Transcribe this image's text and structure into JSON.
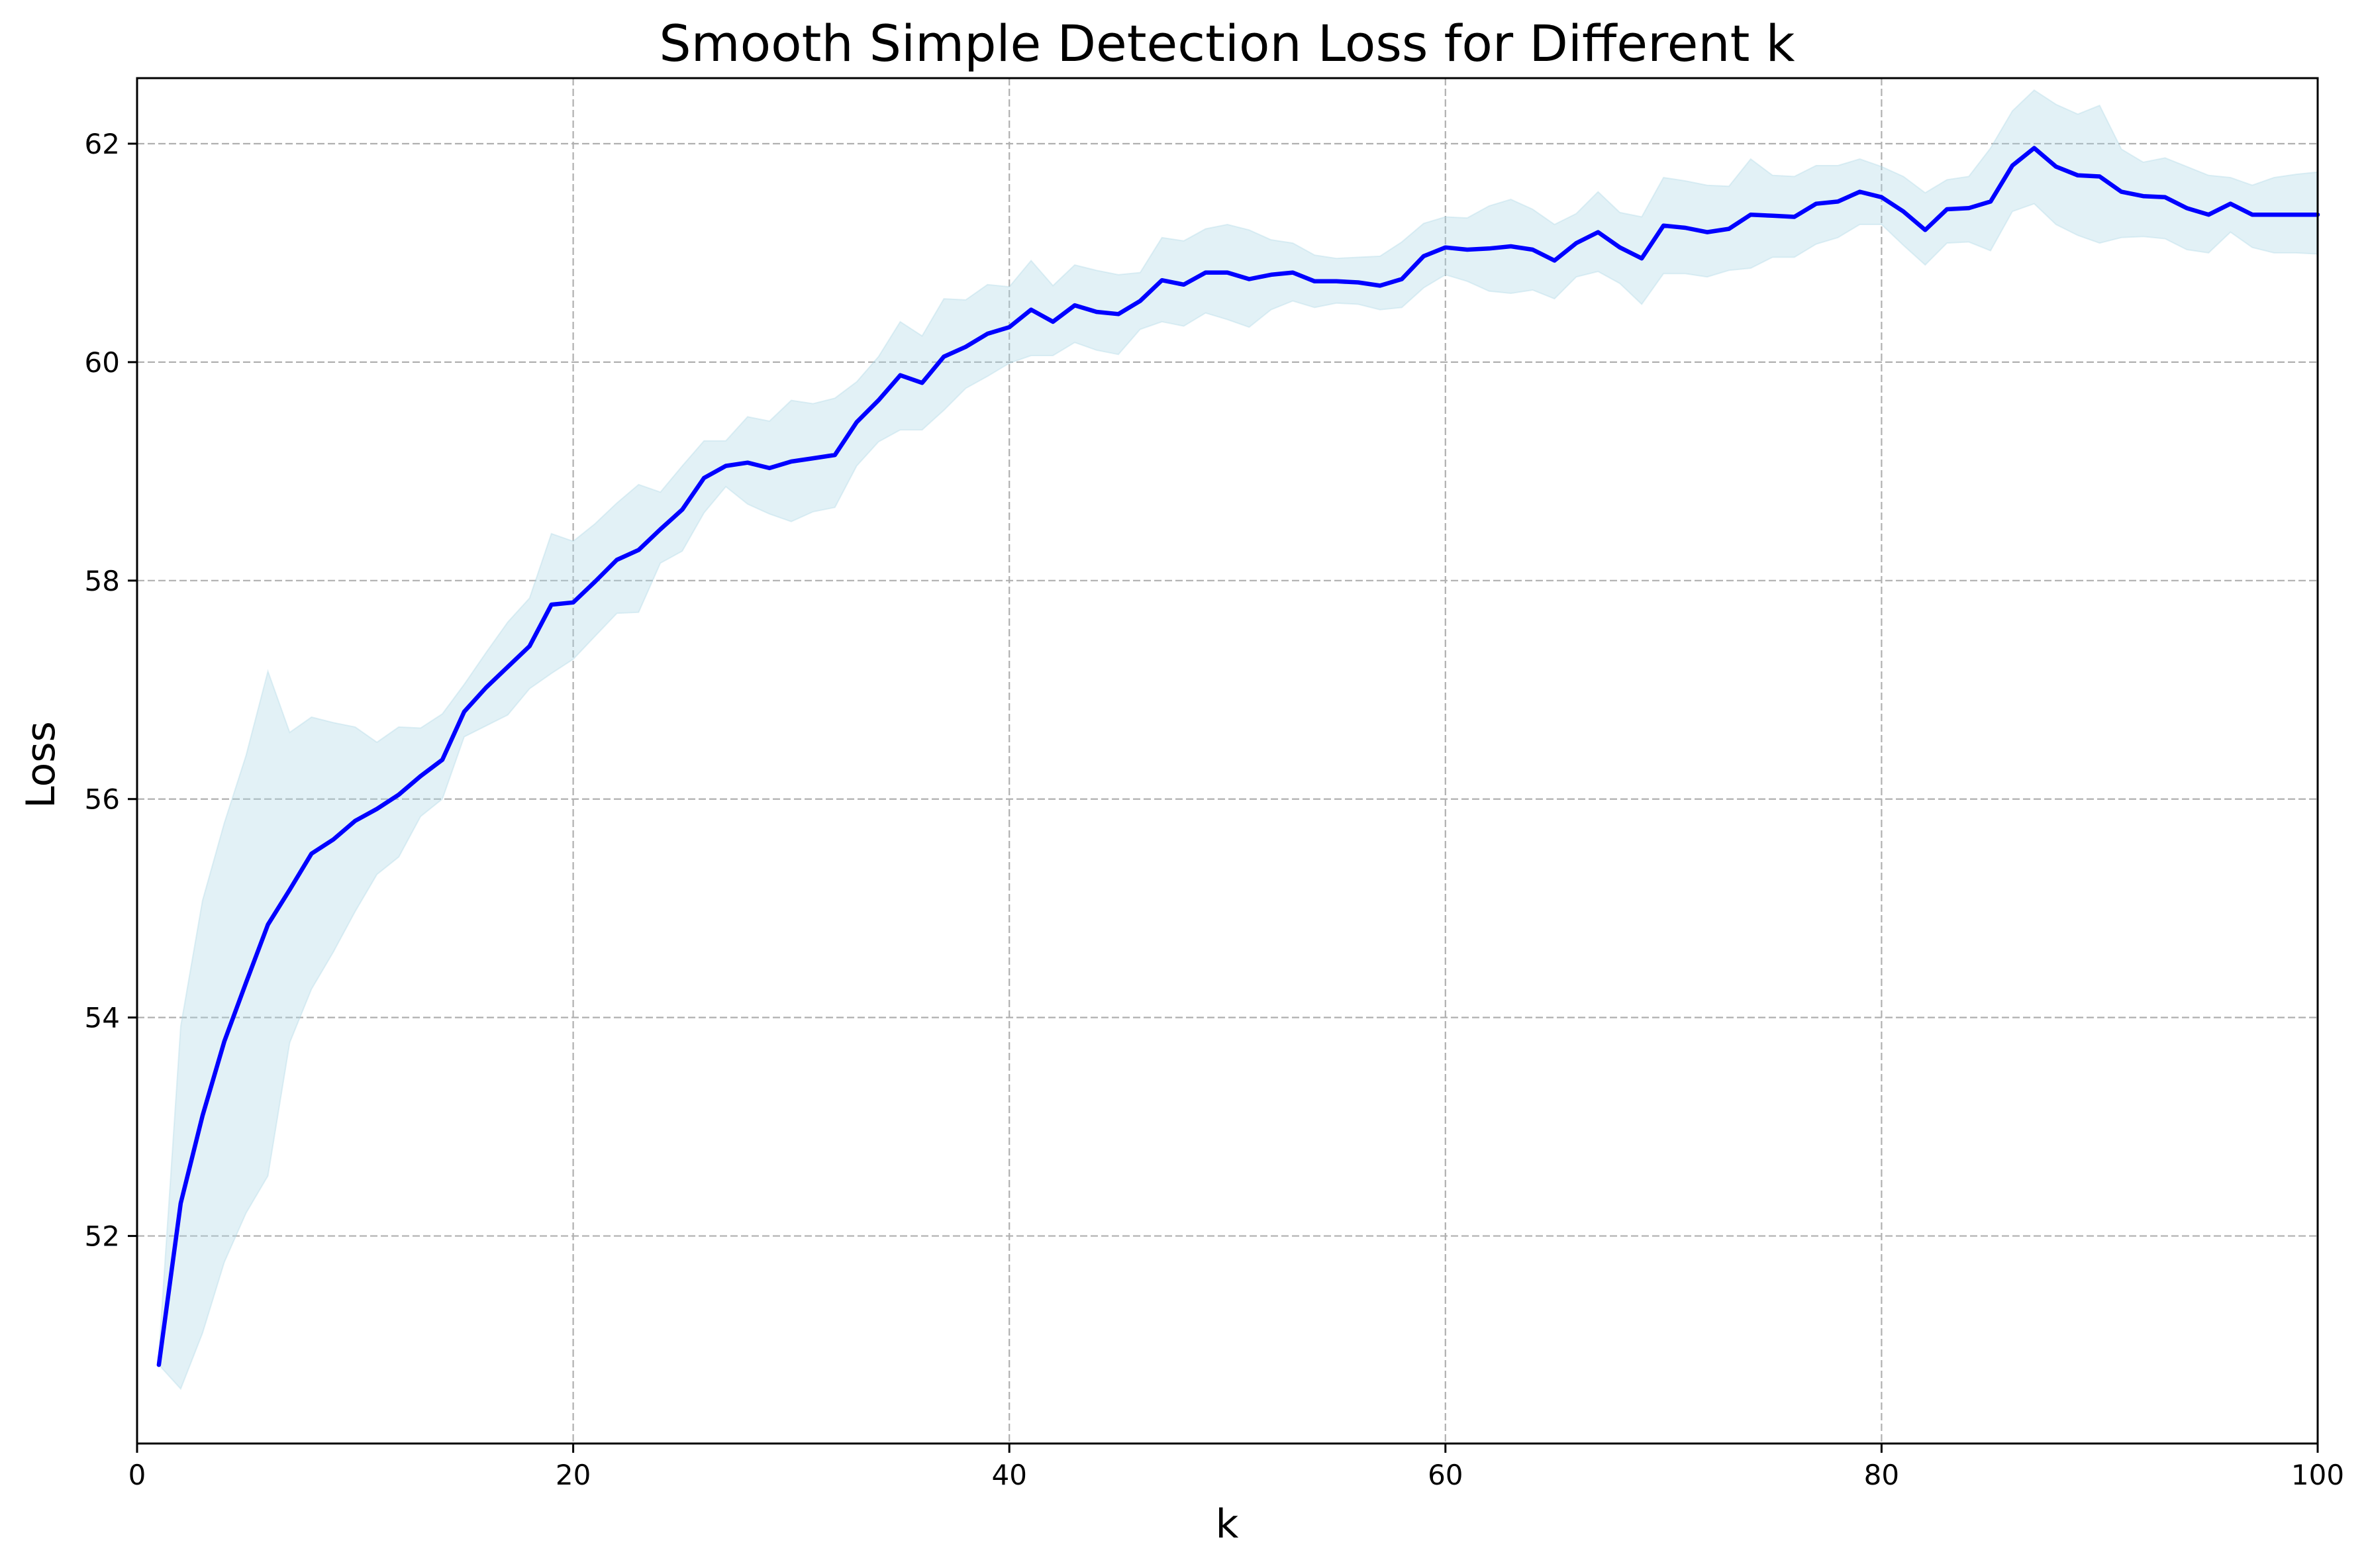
{
  "colors": {
    "line": "#0000ff",
    "band": "#add8e6",
    "grid": "#b0b0b0",
    "axis": "#000000",
    "background": "#ffffff"
  },
  "chart_data": {
    "type": "line",
    "title": "Smooth Simple Detection Loss for Different k",
    "xlabel": "k",
    "ylabel": "Loss",
    "xlim": [
      0,
      100
    ],
    "ylim": [
      50.1,
      62.6
    ],
    "xticks": [
      0,
      20,
      40,
      60,
      80,
      100
    ],
    "yticks": [
      52,
      54,
      56,
      58,
      60,
      62
    ],
    "grid": true,
    "series": [
      {
        "style": "solid line",
        "x": [
          1,
          2,
          3,
          4,
          5,
          6,
          7,
          8,
          9,
          10,
          11,
          12,
          13,
          14,
          15,
          16,
          17,
          18,
          19,
          20,
          21,
          22,
          23,
          24,
          25,
          26,
          27,
          28,
          29,
          30,
          31,
          32,
          33,
          34,
          35,
          36,
          37,
          38,
          39,
          40,
          41,
          42,
          43,
          44,
          45,
          46,
          47,
          48,
          49,
          50,
          51,
          52,
          53,
          54,
          55,
          56,
          57,
          58,
          59,
          60,
          61,
          62,
          63,
          64,
          65,
          66,
          67,
          68,
          69,
          70,
          71,
          72,
          73,
          74,
          75,
          76,
          77,
          78,
          79,
          80,
          81,
          82,
          83,
          84,
          85,
          86,
          87,
          88,
          89,
          90,
          91,
          92,
          93,
          94,
          95,
          96,
          97,
          98,
          99,
          100
        ],
        "y": [
          50.82,
          52.3,
          53.1,
          53.78,
          54.32,
          54.85,
          55.17,
          55.5,
          55.63,
          55.8,
          55.91,
          56.04,
          56.21,
          56.36,
          56.8,
          57.02,
          57.21,
          57.4,
          57.78,
          57.8,
          57.99,
          58.19,
          58.28,
          58.47,
          58.65,
          58.94,
          59.05,
          59.08,
          59.03,
          59.09,
          59.12,
          59.15,
          59.45,
          59.65,
          59.88,
          59.81,
          60.05,
          60.14,
          60.26,
          60.32,
          60.48,
          60.37,
          60.52,
          60.46,
          60.44,
          60.56,
          60.75,
          60.71,
          60.82,
          60.82,
          60.76,
          60.8,
          60.82,
          60.74,
          60.74,
          60.73,
          60.7,
          60.76,
          60.97,
          61.05,
          61.03,
          61.04,
          61.06,
          61.03,
          60.93,
          61.09,
          61.19,
          61.05,
          60.95,
          61.25,
          61.23,
          61.19,
          61.22,
          61.35,
          61.34,
          61.33,
          61.45,
          61.47,
          61.56,
          61.51,
          61.38,
          61.21,
          61.4,
          61.41,
          61.47,
          61.8,
          61.96,
          61.79,
          61.71,
          61.7,
          61.56,
          61.52,
          61.51,
          61.41,
          61.35,
          61.45,
          61.35,
          61.35,
          61.35,
          61.35
        ]
      }
    ],
    "band": {
      "upper": [
        50.92,
        53.92,
        55.07,
        55.78,
        56.4,
        57.17,
        56.61,
        56.75,
        56.7,
        56.66,
        56.52,
        56.66,
        56.65,
        56.78,
        57.05,
        57.34,
        57.62,
        57.84,
        58.43,
        58.36,
        58.52,
        58.71,
        58.88,
        58.81,
        59.05,
        59.28,
        59.28,
        59.5,
        59.46,
        59.65,
        59.62,
        59.67,
        59.82,
        60.05,
        60.37,
        60.24,
        60.58,
        60.57,
        60.71,
        60.69,
        60.93,
        60.7,
        60.89,
        60.84,
        60.8,
        60.82,
        61.14,
        61.11,
        61.22,
        61.26,
        61.21,
        61.12,
        61.09,
        60.98,
        60.95,
        60.96,
        60.97,
        61.1,
        61.27,
        61.33,
        61.32,
        61.43,
        61.49,
        61.4,
        61.26,
        61.36,
        61.56,
        61.37,
        61.33,
        61.69,
        61.66,
        61.62,
        61.61,
        61.86,
        61.71,
        61.7,
        61.8,
        61.8,
        61.86,
        61.79,
        61.7,
        61.55,
        61.67,
        61.7,
        61.96,
        62.3,
        62.49,
        62.36,
        62.27,
        62.35,
        61.95,
        61.83,
        61.87,
        61.79,
        61.71,
        61.69,
        61.62,
        61.69,
        61.72,
        61.74
      ],
      "lower": [
        50.82,
        50.6,
        51.11,
        51.76,
        52.21,
        52.55,
        53.77,
        54.26,
        54.6,
        54.97,
        55.31,
        55.47,
        55.84,
        56.0,
        56.57,
        56.67,
        56.77,
        57.01,
        57.15,
        57.28,
        57.49,
        57.7,
        57.71,
        58.16,
        58.27,
        58.62,
        58.86,
        58.7,
        58.61,
        58.54,
        58.63,
        58.67,
        59.05,
        59.27,
        59.38,
        59.38,
        59.56,
        59.76,
        59.87,
        59.99,
        60.06,
        60.06,
        60.18,
        60.11,
        60.07,
        60.3,
        60.37,
        60.33,
        60.45,
        60.39,
        60.32,
        60.48,
        60.56,
        60.5,
        60.54,
        60.53,
        60.48,
        60.5,
        60.68,
        60.8,
        60.74,
        60.65,
        60.63,
        60.66,
        60.58,
        60.78,
        60.83,
        60.72,
        60.53,
        60.81,
        60.81,
        60.78,
        60.84,
        60.86,
        60.96,
        60.96,
        61.08,
        61.14,
        61.26,
        61.26,
        61.07,
        60.89,
        61.09,
        61.1,
        61.02,
        61.38,
        61.45,
        61.26,
        61.16,
        61.09,
        61.14,
        61.15,
        61.13,
        61.03,
        61.0,
        61.19,
        61.05,
        61.0,
        61.0,
        60.99
      ]
    }
  }
}
